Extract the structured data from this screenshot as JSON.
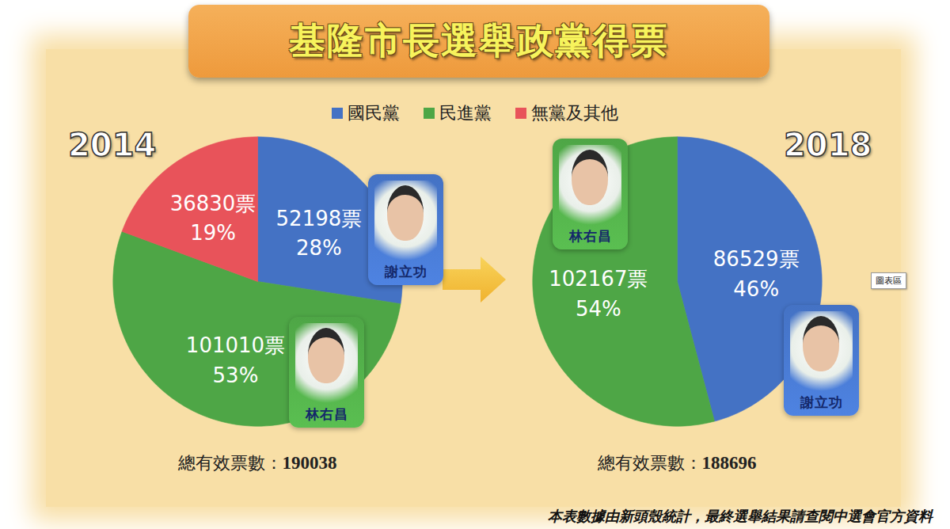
{
  "title": "基隆市長選舉政黨得票",
  "chart_data": [
    {
      "type": "pie",
      "title": "2014",
      "categories": [
        "國民黨",
        "民進黨",
        "無黨及其他"
      ],
      "values": [
        52198,
        101010,
        36830
      ],
      "value_labels": [
        "52198票",
        "101010票",
        "36830票"
      ],
      "percentages": [
        28,
        53,
        19
      ],
      "percentage_labels": [
        "28%",
        "53%",
        "19%"
      ],
      "colors": [
        "#4472c4",
        "#4ea646",
        "#e8535a"
      ],
      "candidates": [
        {
          "name": "謝立功",
          "category": "國民黨"
        },
        {
          "name": "林右昌",
          "category": "民進黨"
        }
      ],
      "total_label": "總有效票數：",
      "total": 190038,
      "data_labels": true,
      "legend": "top"
    },
    {
      "type": "pie",
      "title": "2018",
      "categories": [
        "國民黨",
        "民進黨"
      ],
      "values": [
        86529,
        102167
      ],
      "value_labels": [
        "86529票",
        "102167票"
      ],
      "percentages": [
        46,
        54
      ],
      "percentage_labels": [
        "46%",
        "54%"
      ],
      "colors": [
        "#4472c4",
        "#4ea646"
      ],
      "candidates": [
        {
          "name": "林右昌",
          "category": "民進黨"
        },
        {
          "name": "謝立功",
          "category": "國民黨"
        }
      ],
      "total_label": "總有效票數：",
      "total": 188696,
      "data_labels": true,
      "legend": "top"
    }
  ],
  "tooltip": "圖表區",
  "footnote": "本表數據由新頭殼統計，最終選舉結果請查閱中選會官方資料"
}
